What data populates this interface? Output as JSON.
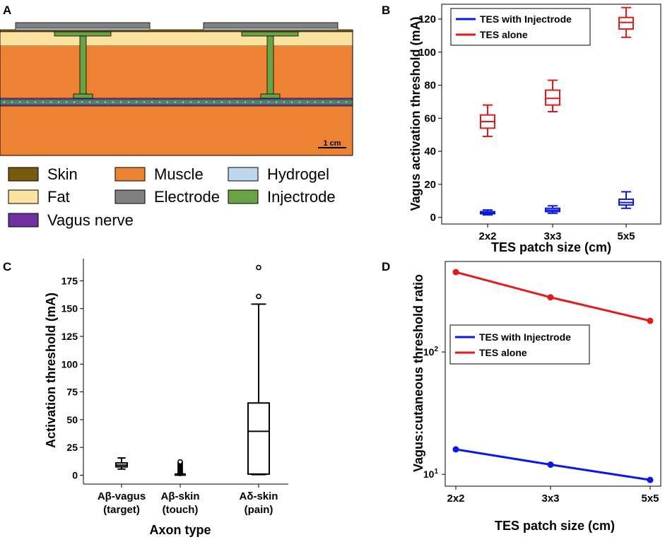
{
  "panels": {
    "a": "A",
    "b": "B",
    "c": "C",
    "d": "D"
  },
  "colors": {
    "skin": "#7a5a0c",
    "fat": "#fce2a0",
    "muscle": "#ed8232",
    "electrode": "#808080",
    "hydrogel": "#bcd7ee",
    "injectrode": "#6aa345",
    "vagus": "#7030a0",
    "blue": "#0a19e6",
    "red": "#e61919"
  },
  "diagram": {
    "scale_bar": "1 cm",
    "legend": [
      {
        "label": "Skin",
        "color_key": "skin"
      },
      {
        "label": "Muscle",
        "color_key": "muscle"
      },
      {
        "label": "Hydrogel",
        "color_key": "hydrogel"
      },
      {
        "label": "Fat",
        "color_key": "fat"
      },
      {
        "label": "Electrode",
        "color_key": "electrode"
      },
      {
        "label": "Injectrode",
        "color_key": "injectrode"
      },
      {
        "label": "Vagus nerve",
        "color_key": "vagus"
      }
    ]
  },
  "chart_data": [
    {
      "id": "B",
      "type": "box",
      "xlabel": "TES patch size (cm)",
      "ylabel": "Vagus activation threshold (mA)",
      "categories": [
        "2x2",
        "3x3",
        "5x5"
      ],
      "ylim": [
        -4,
        129
      ],
      "yticks": [
        0,
        20,
        40,
        60,
        80,
        100,
        120
      ],
      "legend": [
        "TES with Injectrode",
        "TES alone"
      ],
      "series": [
        {
          "name": "TES with Injectrode",
          "color": "#0a19e6",
          "boxes": [
            {
              "min": 1.5,
              "q1": 2.2,
              "median": 2.8,
              "q3": 3.5,
              "max": 4.5
            },
            {
              "min": 2.5,
              "q1": 3.5,
              "median": 4.4,
              "q3": 5.5,
              "max": 7.0
            },
            {
              "min": 5.5,
              "q1": 7.5,
              "median": 9.0,
              "q3": 11.0,
              "max": 15.5
            }
          ]
        },
        {
          "name": "TES alone",
          "color": "#e61919",
          "boxes": [
            {
              "min": 49,
              "q1": 54,
              "median": 58,
              "q3": 62,
              "max": 68
            },
            {
              "min": 64,
              "q1": 68,
              "median": 72,
              "q3": 77,
              "max": 83
            },
            {
              "min": 109,
              "q1": 114,
              "median": 118,
              "q3": 121,
              "max": 127
            }
          ]
        }
      ]
    },
    {
      "id": "C",
      "type": "box",
      "xlabel": "Axon type",
      "ylabel": "Activation threshold (mA)",
      "categories": [
        [
          "Aβ-vagus",
          "(target)"
        ],
        [
          "Aβ-skin",
          "(touch)"
        ],
        [
          "Aδ-skin",
          "(pain)"
        ]
      ],
      "ylim": [
        -8,
        195
      ],
      "yticks": [
        0,
        25,
        50,
        75,
        100,
        125,
        150,
        175
      ],
      "boxes": [
        {
          "min": 5.5,
          "q1": 7.5,
          "median": 9.0,
          "q3": 11.0,
          "max": 15.5,
          "outliers": []
        },
        {
          "min": 0,
          "q1": 0.3,
          "median": 0.6,
          "q3": 1.0,
          "max": 1.2,
          "outliers": [
            1.5,
            2,
            2.5,
            3,
            3.5,
            4,
            4.5,
            5,
            5.5,
            6,
            6.5,
            7,
            7.5,
            8,
            8.5,
            9,
            9.5,
            10,
            10.5,
            11,
            11.5,
            12
          ]
        },
        {
          "min": 0.5,
          "q1": 1.0,
          "median": 39.5,
          "q3": 65.0,
          "max": 154,
          "outliers": [
            161,
            187
          ]
        }
      ]
    },
    {
      "id": "D",
      "type": "line",
      "yscale": "log",
      "xlabel": "TES patch size (cm)",
      "ylabel": "Vagus:cutaneous threshold ratio",
      "categories": [
        "2x2",
        "3x3",
        "5x5"
      ],
      "ylim": [
        8,
        550
      ],
      "yticks": [
        {
          "value": 10,
          "base": "10",
          "exp": "1"
        },
        {
          "value": 100,
          "base": "10",
          "exp": "2"
        }
      ],
      "legend": [
        "TES with Injectrode",
        "TES alone"
      ],
      "series": [
        {
          "name": "TES with Injectrode",
          "color": "#0a19e6",
          "values": [
            16,
            12,
            9
          ]
        },
        {
          "name": "TES alone",
          "color": "#e61919",
          "values": [
            450,
            280,
            180
          ]
        }
      ]
    }
  ]
}
